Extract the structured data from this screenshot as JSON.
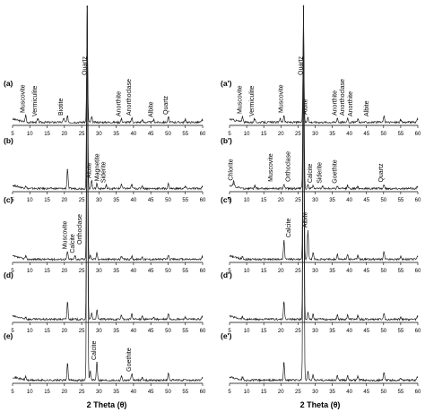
{
  "figure": {
    "xlabel": "2 Theta (θ)"
  },
  "chart_data": [
    {
      "type": "line",
      "id": "a",
      "panel_label": "(a)",
      "column": "left",
      "xlim": [
        5,
        60
      ],
      "xticks": [
        5,
        10,
        15,
        20,
        25,
        30,
        35,
        40,
        45,
        50,
        55,
        60
      ],
      "series": [
        {
          "peaks": [
            {
              "x": 8.8,
              "y": 0.08
            },
            {
              "x": 12.3,
              "y": 0.04
            },
            {
              "x": 19.8,
              "y": 0.05
            },
            {
              "x": 20.9,
              "y": 0.07
            },
            {
              "x": 26.6,
              "y": 1.0
            },
            {
              "x": 27.9,
              "y": 0.06
            },
            {
              "x": 36.5,
              "y": 0.04
            },
            {
              "x": 39.5,
              "y": 0.05
            },
            {
              "x": 42.5,
              "y": 0.03
            },
            {
              "x": 45.8,
              "y": 0.03
            },
            {
              "x": 50.1,
              "y": 0.06
            },
            {
              "x": 55.0,
              "y": 0.03
            },
            {
              "x": 59.9,
              "y": 0.03
            }
          ]
        }
      ],
      "annotations": [
        {
          "label": "Muscovite",
          "x": 8.8
        },
        {
          "label": "Vermiculite",
          "x": 12.3
        },
        {
          "label": "Biotite",
          "x": 19.8
        },
        {
          "label": "Quartz",
          "x": 26.6
        },
        {
          "label": "Anorthite",
          "x": 36.5
        },
        {
          "label": "Anorthoclase",
          "x": 39.5
        },
        {
          "label": "Albite",
          "x": 45.8
        },
        {
          "label": "Quartz",
          "x": 50.1
        }
      ]
    },
    {
      "type": "line",
      "id": "b",
      "panel_label": "(b)",
      "column": "left",
      "xlim": [
        5,
        60
      ],
      "xticks": [
        5,
        10,
        15,
        20,
        25,
        30,
        35,
        40,
        45,
        50,
        55,
        60
      ],
      "series": [
        {
          "peaks": [
            {
              "x": 8.8,
              "y": 0.05
            },
            {
              "x": 20.9,
              "y": 0.35
            },
            {
              "x": 26.6,
              "y": 1.0
            },
            {
              "x": 27.9,
              "y": 0.14
            },
            {
              "x": 29.4,
              "y": 0.09
            },
            {
              "x": 32.1,
              "y": 0.06
            },
            {
              "x": 36.5,
              "y": 0.08
            },
            {
              "x": 39.5,
              "y": 0.07
            },
            {
              "x": 42.5,
              "y": 0.05
            },
            {
              "x": 50.1,
              "y": 0.09
            },
            {
              "x": 55.0,
              "y": 0.04
            },
            {
              "x": 59.9,
              "y": 0.05
            }
          ]
        }
      ],
      "annotations": [
        {
          "label": "Albite",
          "x": 27.9
        },
        {
          "label": "Magnetite",
          "x": 30.3
        },
        {
          "label": "Siderite",
          "x": 32.1
        }
      ]
    },
    {
      "type": "line",
      "id": "c",
      "panel_label": "(c)",
      "column": "left",
      "xlim": [
        5,
        60
      ],
      "xticks": [
        5,
        10,
        15,
        20,
        25,
        30,
        35,
        40,
        45,
        50,
        55,
        60
      ],
      "series": [
        {
          "peaks": [
            {
              "x": 8.8,
              "y": 0.05
            },
            {
              "x": 20.9,
              "y": 0.12
            },
            {
              "x": 23.1,
              "y": 0.06
            },
            {
              "x": 26.6,
              "y": 1.0
            },
            {
              "x": 27.5,
              "y": 0.07
            },
            {
              "x": 29.4,
              "y": 0.1
            },
            {
              "x": 36.5,
              "y": 0.05
            },
            {
              "x": 39.5,
              "y": 0.05
            },
            {
              "x": 42.5,
              "y": 0.04
            },
            {
              "x": 50.1,
              "y": 0.07
            },
            {
              "x": 59.9,
              "y": 0.04
            }
          ]
        }
      ],
      "annotations": [
        {
          "label": "Muscovite",
          "x": 20.9
        },
        {
          "label": "Calcite",
          "x": 23.1
        },
        {
          "label": "Orthoclase",
          "x": 25.3
        }
      ]
    },
    {
      "type": "line",
      "id": "d",
      "panel_label": "(d)",
      "column": "left",
      "xlim": [
        5,
        60
      ],
      "xticks": [
        5,
        10,
        15,
        20,
        25,
        30,
        35,
        40,
        45,
        50,
        55,
        60
      ],
      "series": [
        {
          "peaks": [
            {
              "x": 8.8,
              "y": 0.05
            },
            {
              "x": 20.9,
              "y": 0.33
            },
            {
              "x": 26.6,
              "y": 1.0
            },
            {
              "x": 27.9,
              "y": 0.12
            },
            {
              "x": 29.4,
              "y": 0.18
            },
            {
              "x": 36.5,
              "y": 0.09
            },
            {
              "x": 39.5,
              "y": 0.1
            },
            {
              "x": 42.5,
              "y": 0.07
            },
            {
              "x": 45.8,
              "y": 0.05
            },
            {
              "x": 50.1,
              "y": 0.11
            },
            {
              "x": 55.0,
              "y": 0.05
            },
            {
              "x": 59.9,
              "y": 0.06
            }
          ]
        }
      ],
      "annotations": []
    },
    {
      "type": "line",
      "id": "e",
      "panel_label": "(e)",
      "column": "left",
      "xlim": [
        5,
        60
      ],
      "xticks": [
        5,
        10,
        15,
        20,
        25,
        30,
        35,
        40,
        45,
        50,
        55,
        60
      ],
      "series": [
        {
          "peaks": [
            {
              "x": 8.8,
              "y": 0.07
            },
            {
              "x": 20.9,
              "y": 0.32
            },
            {
              "x": 26.6,
              "y": 1.0
            },
            {
              "x": 27.5,
              "y": 0.18
            },
            {
              "x": 29.4,
              "y": 0.35
            },
            {
              "x": 36.5,
              "y": 0.08
            },
            {
              "x": 39.5,
              "y": 0.12
            },
            {
              "x": 42.5,
              "y": 0.06
            },
            {
              "x": 50.1,
              "y": 0.13
            },
            {
              "x": 59.9,
              "y": 0.06
            }
          ]
        }
      ],
      "annotations": [
        {
          "label": "Calcite",
          "x": 29.4
        },
        {
          "label": "Goethite",
          "x": 39.5
        }
      ]
    },
    {
      "type": "line",
      "id": "a'",
      "panel_label": "(a')",
      "column": "right",
      "xlim": [
        5,
        60
      ],
      "xticks": [
        5,
        10,
        15,
        20,
        25,
        30,
        35,
        40,
        45,
        50,
        55,
        60
      ],
      "series": [
        {
          "peaks": [
            {
              "x": 8.8,
              "y": 0.07
            },
            {
              "x": 12.3,
              "y": 0.04
            },
            {
              "x": 19.8,
              "y": 0.05
            },
            {
              "x": 20.9,
              "y": 0.08
            },
            {
              "x": 26.6,
              "y": 1.0
            },
            {
              "x": 27.9,
              "y": 0.06
            },
            {
              "x": 36.5,
              "y": 0.05
            },
            {
              "x": 39.5,
              "y": 0.05
            },
            {
              "x": 42.5,
              "y": 0.04
            },
            {
              "x": 50.1,
              "y": 0.07
            },
            {
              "x": 55.0,
              "y": 0.03
            },
            {
              "x": 59.9,
              "y": 0.04
            }
          ]
        }
      ],
      "annotations": [
        {
          "label": "Muscovite",
          "x": 8.8
        },
        {
          "label": "Vermiculite",
          "x": 12.3
        },
        {
          "label": "Muscovite",
          "x": 20.9
        },
        {
          "label": "Quartz",
          "x": 26.6
        },
        {
          "label": "Albite",
          "x": 27.9
        },
        {
          "label": "Anorthite",
          "x": 36.5
        },
        {
          "label": "Anorthoclase",
          "x": 38.8
        },
        {
          "label": "Anorthite",
          "x": 41.2
        },
        {
          "label": "Albite",
          "x": 45.8
        }
      ]
    },
    {
      "type": "line",
      "id": "b'",
      "panel_label": "(b')",
      "column": "right",
      "xlim": [
        5,
        60
      ],
      "xticks": [
        5,
        10,
        15,
        20,
        25,
        30,
        35,
        40,
        45,
        50,
        55,
        60
      ],
      "series": [
        {
          "peaks": [
            {
              "x": 6.2,
              "y": 0.1
            },
            {
              "x": 12.4,
              "y": 0.05
            },
            {
              "x": 20.9,
              "y": 0.08
            },
            {
              "x": 26.6,
              "y": 1.0
            },
            {
              "x": 27.9,
              "y": 0.08
            },
            {
              "x": 29.4,
              "y": 0.06
            },
            {
              "x": 32.1,
              "y": 0.05
            },
            {
              "x": 36.5,
              "y": 0.05
            },
            {
              "x": 39.5,
              "y": 0.06
            },
            {
              "x": 42.5,
              "y": 0.04
            },
            {
              "x": 50.1,
              "y": 0.07
            },
            {
              "x": 59.9,
              "y": 0.04
            }
          ]
        }
      ],
      "annotations": [
        {
          "label": "Chlorite",
          "x": 6.2
        },
        {
          "label": "Muscovite",
          "x": 17.8
        },
        {
          "label": "Orthoclase",
          "x": 23.0
        },
        {
          "label": "Calcite",
          "x": 29.4
        },
        {
          "label": "Siderite",
          "x": 32.1
        },
        {
          "label": "Goethite",
          "x": 36.5
        },
        {
          "label": "Quartz",
          "x": 50.1
        }
      ]
    },
    {
      "type": "line",
      "id": "c'",
      "panel_label": "(c')",
      "column": "right",
      "xlim": [
        5,
        60
      ],
      "xticks": [
        5,
        10,
        15,
        20,
        25,
        30,
        35,
        40,
        45,
        50,
        55,
        60
      ],
      "series": [
        {
          "peaks": [
            {
              "x": 8.8,
              "y": 0.05
            },
            {
              "x": 20.9,
              "y": 0.3
            },
            {
              "x": 26.6,
              "y": 1.0
            },
            {
              "x": 27.9,
              "y": 0.45
            },
            {
              "x": 29.4,
              "y": 0.1
            },
            {
              "x": 36.5,
              "y": 0.08
            },
            {
              "x": 39.5,
              "y": 0.08
            },
            {
              "x": 42.5,
              "y": 0.06
            },
            {
              "x": 50.1,
              "y": 0.12
            },
            {
              "x": 55.0,
              "y": 0.05
            },
            {
              "x": 59.9,
              "y": 0.06
            }
          ]
        }
      ],
      "annotations": [
        {
          "label": "Calcite",
          "x": 23.1
        },
        {
          "label": "Albite",
          "x": 27.9
        }
      ]
    },
    {
      "type": "line",
      "id": "d'",
      "panel_label": "(d')",
      "column": "right",
      "xlim": [
        5,
        60
      ],
      "xticks": [
        5,
        10,
        15,
        20,
        25,
        30,
        35,
        40,
        45,
        50,
        55,
        60
      ],
      "series": [
        {
          "peaks": [
            {
              "x": 8.8,
              "y": 0.05
            },
            {
              "x": 20.9,
              "y": 0.32
            },
            {
              "x": 26.6,
              "y": 1.0
            },
            {
              "x": 27.9,
              "y": 0.14
            },
            {
              "x": 29.4,
              "y": 0.1
            },
            {
              "x": 36.5,
              "y": 0.09
            },
            {
              "x": 39.5,
              "y": 0.09
            },
            {
              "x": 42.5,
              "y": 0.07
            },
            {
              "x": 50.1,
              "y": 0.12
            },
            {
              "x": 55.0,
              "y": 0.05
            },
            {
              "x": 59.9,
              "y": 0.06
            }
          ]
        }
      ],
      "annotations": []
    },
    {
      "type": "line",
      "id": "e'",
      "panel_label": "(e')",
      "column": "right",
      "xlim": [
        5,
        60
      ],
      "xticks": [
        5,
        10,
        15,
        20,
        25,
        30,
        35,
        40,
        45,
        50,
        55,
        60
      ],
      "series": [
        {
          "peaks": [
            {
              "x": 8.8,
              "y": 0.06
            },
            {
              "x": 20.9,
              "y": 0.34
            },
            {
              "x": 26.6,
              "y": 1.0
            },
            {
              "x": 27.9,
              "y": 0.16
            },
            {
              "x": 29.4,
              "y": 0.1
            },
            {
              "x": 36.5,
              "y": 0.1
            },
            {
              "x": 39.5,
              "y": 0.1
            },
            {
              "x": 42.5,
              "y": 0.07
            },
            {
              "x": 50.1,
              "y": 0.15
            },
            {
              "x": 55.0,
              "y": 0.05
            },
            {
              "x": 59.9,
              "y": 0.07
            }
          ]
        }
      ],
      "annotations": []
    }
  ]
}
